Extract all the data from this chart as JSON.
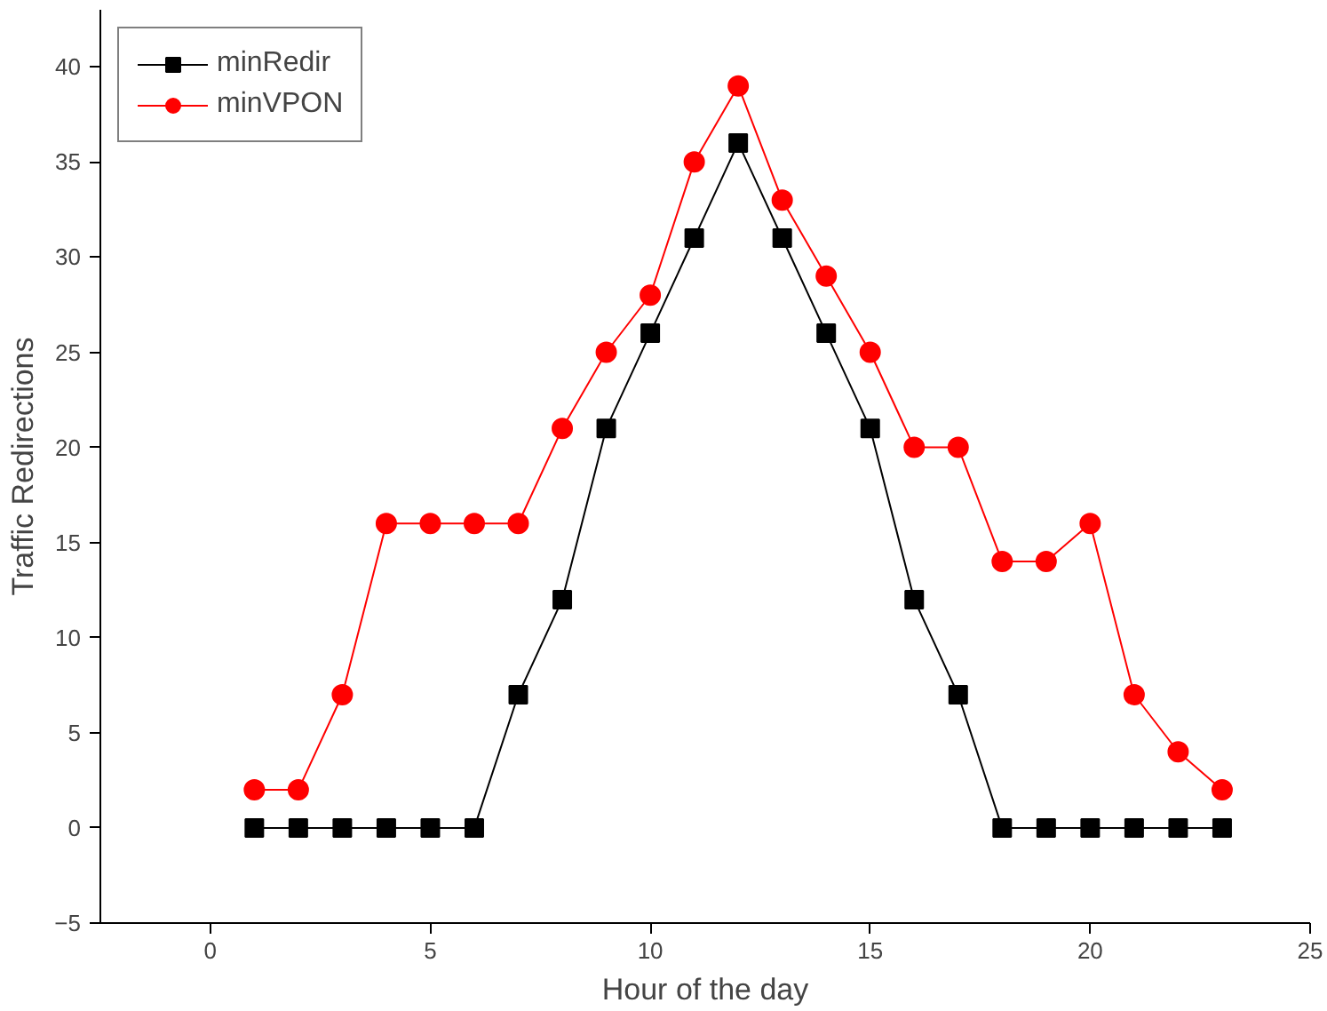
{
  "chart_data": {
    "type": "line",
    "xlabel": "Hour of the day",
    "ylabel": "Traffic Redirections",
    "x": [
      1,
      2,
      3,
      4,
      5,
      6,
      7,
      8,
      9,
      10,
      11,
      12,
      13,
      14,
      15,
      16,
      17,
      18,
      19,
      20,
      21,
      22,
      23
    ],
    "series": [
      {
        "name": "minRedir",
        "color": "#000000",
        "marker": "square",
        "values": [
          0,
          0,
          0,
          0,
          0,
          0,
          7,
          12,
          21,
          26,
          31,
          36,
          31,
          26,
          21,
          12,
          7,
          0,
          0,
          0,
          0,
          0,
          0
        ]
      },
      {
        "name": "minVPON",
        "color": "#ff0000",
        "marker": "circle",
        "values": [
          2,
          2,
          7,
          16,
          16,
          16,
          16,
          21,
          25,
          28,
          35,
          39,
          33,
          29,
          25,
          20,
          20,
          14,
          14,
          16,
          7,
          4,
          2
        ]
      }
    ],
    "xlim": [
      -2.5,
      25
    ],
    "xticks": [
      0,
      5,
      10,
      15,
      20,
      25
    ],
    "ylim": [
      -5,
      43
    ],
    "yticks": [
      -5,
      0,
      5,
      10,
      15,
      20,
      25,
      30,
      35,
      40
    ],
    "grid": false,
    "legend": "top left",
    "line_style": "solid"
  }
}
